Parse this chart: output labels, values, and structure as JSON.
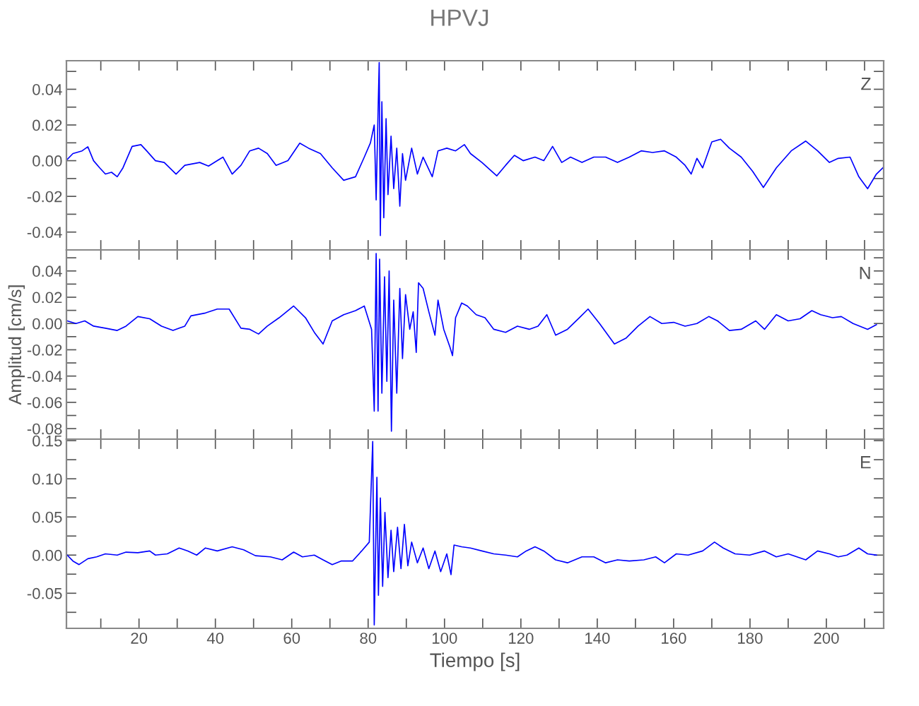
{
  "chart_data": [
    {
      "type": "line",
      "title": "HPVJ",
      "annotations": [
        "Z"
      ],
      "tick_labels": "y",
      "grid": false,
      "xlim": [
        1,
        215
      ],
      "ylim": [
        -0.05,
        0.056
      ],
      "xticks": [
        {
          "value": 10,
          "label": null
        },
        {
          "value": 20,
          "label": null
        },
        {
          "value": 30,
          "label": null
        },
        {
          "value": 40,
          "label": null
        },
        {
          "value": 50,
          "label": null
        },
        {
          "value": 60,
          "label": null
        },
        {
          "value": 70,
          "label": null
        },
        {
          "value": 80,
          "label": null
        },
        {
          "value": 90,
          "label": null
        },
        {
          "value": 100,
          "label": null
        },
        {
          "value": 110,
          "label": null
        },
        {
          "value": 120,
          "label": null
        },
        {
          "value": 130,
          "label": null
        },
        {
          "value": 140,
          "label": null
        },
        {
          "value": 150,
          "label": null
        },
        {
          "value": 160,
          "label": null
        },
        {
          "value": 170,
          "label": null
        },
        {
          "value": 180,
          "label": null
        },
        {
          "value": 190,
          "label": null
        },
        {
          "value": 200,
          "label": null
        },
        {
          "value": 210,
          "label": null
        }
      ],
      "yticks": [
        {
          "value": -0.05,
          "label": null
        },
        {
          "value": -0.04,
          "label": "-0.04"
        },
        {
          "value": -0.03,
          "label": null
        },
        {
          "value": -0.02,
          "label": "-0.02"
        },
        {
          "value": -0.01,
          "label": null
        },
        {
          "value": 0,
          "label": "0.00"
        },
        {
          "value": 0.01,
          "label": null
        },
        {
          "value": 0.02,
          "label": "0.02"
        },
        {
          "value": 0.03,
          "label": null
        },
        {
          "value": 0.04,
          "label": "0.04"
        },
        {
          "value": 0.05,
          "label": null
        }
      ],
      "series": [
        {
          "color": "#0000ff",
          "x": [
            1.2,
            2.7,
            5.1,
            6.6,
            8.1,
            9.7,
            11.2,
            12.8,
            14.3,
            15.8,
            18.2,
            20.5,
            22.0,
            24.3,
            26.6,
            29.7,
            32.0,
            35.9,
            38.2,
            40.5,
            42.0,
            44.4,
            46.7,
            49.0,
            51.3,
            53.6,
            55.9,
            59.0,
            62.1,
            64.4,
            67.5,
            70.6,
            73.6,
            76.7,
            79.0,
            80.6,
            81.6,
            82.1,
            82.6,
            82.9,
            83.2,
            83.6,
            84.1,
            84.7,
            85.2,
            86.0,
            86.7,
            87.5,
            88.3,
            89.0,
            89.8,
            91.4,
            92.9,
            94.4,
            96.8,
            98.3,
            100.6,
            102.9,
            105.2,
            106.8,
            109.8,
            113.7,
            116.0,
            118.3,
            120.6,
            123.7,
            126.0,
            128.3,
            130.7,
            133.0,
            136.0,
            139.1,
            142.2,
            145.3,
            148.4,
            151.5,
            154.5,
            157.6,
            160.7,
            163.0,
            164.6,
            166.1,
            167.6,
            170.0,
            172.3,
            174.6,
            177.7,
            180.7,
            183.5,
            186.9,
            190.8,
            194.6,
            197.7,
            200.8,
            203.1,
            206.2,
            208.5,
            210.8,
            213.1,
            214.8
          ],
          "values": [
            0.0007,
            0.004,
            0.0055,
            0.0078,
            0.0,
            -0.004,
            -0.0075,
            -0.0065,
            -0.009,
            -0.004,
            0.008,
            0.009,
            0.0055,
            0.0,
            -0.001,
            -0.0075,
            -0.0026,
            -0.001,
            -0.003,
            0.0,
            0.002,
            -0.0075,
            -0.0026,
            0.0055,
            0.007,
            0.004,
            -0.0026,
            0.0,
            0.0098,
            0.007,
            0.004,
            -0.004,
            -0.011,
            -0.009,
            0.002,
            0.01,
            0.02,
            -0.022,
            0.027,
            0.055,
            -0.042,
            0.033,
            -0.032,
            0.0235,
            -0.019,
            0.0137,
            -0.0157,
            0.007,
            -0.0255,
            0.004,
            -0.011,
            0.007,
            -0.0075,
            0.002,
            -0.009,
            0.0055,
            0.007,
            0.0055,
            0.009,
            0.004,
            -0.001,
            -0.0085,
            -0.0026,
            0.003,
            0.0,
            0.002,
            0.0,
            0.008,
            -0.001,
            0.002,
            -0.001,
            0.002,
            0.002,
            -0.001,
            0.002,
            0.0055,
            0.0046,
            0.0055,
            0.002,
            -0.0026,
            -0.0075,
            0.0013,
            -0.004,
            0.0105,
            0.012,
            0.007,
            0.002,
            -0.006,
            -0.015,
            -0.004,
            0.0055,
            0.011,
            0.0055,
            -0.001,
            0.0013,
            0.002,
            -0.009,
            -0.0157,
            -0.0075,
            -0.004
          ]
        }
      ]
    },
    {
      "type": "line",
      "ylabel": "Amplitud [cm/s]",
      "annotations": [
        "N"
      ],
      "tick_labels": "y",
      "grid": false,
      "xlim": [
        1,
        215
      ],
      "ylim": [
        -0.088,
        0.056
      ],
      "xticks": [
        {
          "value": 10,
          "label": null
        },
        {
          "value": 20,
          "label": null
        },
        {
          "value": 30,
          "label": null
        },
        {
          "value": 40,
          "label": null
        },
        {
          "value": 50,
          "label": null
        },
        {
          "value": 60,
          "label": null
        },
        {
          "value": 70,
          "label": null
        },
        {
          "value": 80,
          "label": null
        },
        {
          "value": 90,
          "label": null
        },
        {
          "value": 100,
          "label": null
        },
        {
          "value": 110,
          "label": null
        },
        {
          "value": 120,
          "label": null
        },
        {
          "value": 130,
          "label": null
        },
        {
          "value": 140,
          "label": null
        },
        {
          "value": 150,
          "label": null
        },
        {
          "value": 160,
          "label": null
        },
        {
          "value": 170,
          "label": null
        },
        {
          "value": 180,
          "label": null
        },
        {
          "value": 190,
          "label": null
        },
        {
          "value": 200,
          "label": null
        },
        {
          "value": 210,
          "label": null
        }
      ],
      "yticks": [
        {
          "value": -0.08,
          "label": "-0.08"
        },
        {
          "value": -0.07,
          "label": null
        },
        {
          "value": -0.06,
          "label": "-0.06"
        },
        {
          "value": -0.05,
          "label": null
        },
        {
          "value": -0.04,
          "label": "-0.04"
        },
        {
          "value": -0.03,
          "label": null
        },
        {
          "value": -0.02,
          "label": "-0.02"
        },
        {
          "value": -0.01,
          "label": null
        },
        {
          "value": 0,
          "label": "0.00"
        },
        {
          "value": 0.01,
          "label": null
        },
        {
          "value": 0.02,
          "label": "0.02"
        },
        {
          "value": 0.03,
          "label": null
        },
        {
          "value": 0.04,
          "label": "0.04"
        },
        {
          "value": 0.05,
          "label": null
        }
      ],
      "series": [
        {
          "color": "#0000ff",
          "x": [
            1.2,
            3.5,
            5.8,
            8.1,
            11.2,
            14.3,
            16.6,
            19.7,
            22.8,
            25.9,
            28.9,
            32.0,
            33.6,
            37.4,
            40.5,
            43.6,
            46.7,
            49.0,
            51.3,
            53.6,
            56.7,
            60.5,
            63.6,
            65.9,
            68.2,
            70.6,
            73.6,
            76.7,
            79.0,
            80.9,
            81.6,
            82.1,
            82.6,
            83.0,
            83.6,
            84.3,
            84.9,
            85.5,
            86.1,
            86.7,
            87.5,
            88.3,
            89.0,
            89.8,
            90.9,
            91.8,
            92.6,
            93.2,
            94.4,
            95.9,
            97.5,
            98.3,
            99.8,
            101.4,
            102.1,
            102.9,
            104.5,
            106.0,
            108.3,
            110.6,
            112.9,
            116.0,
            119.1,
            122.2,
            124.5,
            126.8,
            129.1,
            132.2,
            135.3,
            137.6,
            140.6,
            144.5,
            147.6,
            150.7,
            153.8,
            156.9,
            160.0,
            163.0,
            166.1,
            169.2,
            171.5,
            174.6,
            177.7,
            181.5,
            183.8,
            186.9,
            190.0,
            193.1,
            196.2,
            198.5,
            201.6,
            203.9,
            207.0,
            210.8,
            213.1
          ],
          "values": [
            0.002,
            0.0,
            0.002,
            -0.002,
            -0.0036,
            -0.0053,
            -0.002,
            0.0053,
            0.0036,
            -0.002,
            -0.0053,
            -0.002,
            0.0058,
            0.008,
            0.011,
            0.011,
            -0.0036,
            -0.0044,
            -0.008,
            -0.002,
            0.0044,
            0.0133,
            0.0044,
            -0.0067,
            -0.0156,
            0.002,
            0.0067,
            0.0098,
            0.0133,
            -0.0044,
            -0.0667,
            0.0533,
            -0.0667,
            0.049,
            -0.053,
            0.0356,
            -0.044,
            0.04,
            -0.082,
            0.0178,
            -0.053,
            0.0267,
            -0.0267,
            0.022,
            -0.0044,
            0.0089,
            -0.022,
            0.031,
            0.0267,
            0.0089,
            -0.0089,
            0.0178,
            -0.0044,
            -0.0178,
            -0.0244,
            0.0044,
            0.0156,
            0.0133,
            0.0067,
            0.0044,
            -0.0044,
            -0.0067,
            -0.002,
            -0.0044,
            -0.002,
            0.0067,
            -0.0089,
            -0.0044,
            0.0044,
            0.011,
            0.0,
            -0.0156,
            -0.011,
            -0.002,
            0.0053,
            0.0,
            0.0009,
            -0.002,
            0.0,
            0.0053,
            0.002,
            -0.0053,
            -0.0044,
            0.002,
            -0.0044,
            0.0067,
            0.002,
            0.0036,
            0.0098,
            0.0067,
            0.0044,
            0.0053,
            0.0,
            -0.0044,
            -0.0009
          ]
        }
      ]
    },
    {
      "type": "line",
      "xlabel": "Tiempo [s]",
      "annotations": [
        "E"
      ],
      "grid": false,
      "xlim": [
        1,
        215
      ],
      "ylim": [
        -0.096,
        0.152
      ],
      "xticks": [
        {
          "value": 10,
          "label": null
        },
        20,
        {
          "value": 30,
          "label": null
        },
        40,
        {
          "value": 50,
          "label": null
        },
        60,
        {
          "value": 70,
          "label": null
        },
        80,
        {
          "value": 90,
          "label": null
        },
        100,
        {
          "value": 110,
          "label": null
        },
        120,
        {
          "value": 130,
          "label": null
        },
        140,
        {
          "value": 150,
          "label": null
        },
        160,
        {
          "value": 170,
          "label": null
        },
        180,
        {
          "value": 190,
          "label": null
        },
        200,
        {
          "value": 210,
          "label": null
        }
      ],
      "yticks": [
        {
          "value": -0.075,
          "label": null
        },
        {
          "value": -0.05,
          "label": "-0.05"
        },
        {
          "value": -0.025,
          "label": null
        },
        {
          "value": 0,
          "label": "0.00"
        },
        {
          "value": 0.025,
          "label": null
        },
        {
          "value": 0.05,
          "label": "0.05"
        },
        {
          "value": 0.075,
          "label": null
        },
        {
          "value": 0.1,
          "label": "0.10"
        },
        {
          "value": 0.125,
          "label": null
        },
        {
          "value": 0.15,
          "label": "0.15"
        }
      ],
      "series": [
        {
          "color": "#0000ff",
          "x": [
            1.2,
            2.7,
            4.3,
            6.6,
            8.9,
            11.2,
            14.3,
            16.6,
            19.7,
            22.8,
            24.3,
            27.4,
            30.5,
            32.8,
            35.1,
            37.4,
            40.5,
            44.4,
            47.4,
            50.5,
            54.4,
            57.5,
            60.5,
            62.8,
            65.9,
            68.2,
            70.6,
            72.9,
            75.9,
            78.3,
            80.3,
            81.2,
            81.6,
            82.3,
            82.7,
            83.2,
            83.8,
            84.4,
            85.2,
            86.0,
            86.7,
            87.7,
            88.6,
            89.5,
            90.4,
            91.4,
            92.9,
            94.4,
            95.9,
            97.5,
            99.0,
            100.6,
            101.7,
            102.5,
            104.5,
            106.8,
            109.8,
            112.9,
            116.0,
            119.1,
            121.4,
            123.7,
            126.0,
            129.1,
            132.2,
            136.0,
            139.1,
            142.2,
            145.3,
            148.4,
            152.2,
            155.3,
            157.6,
            160.7,
            163.8,
            167.6,
            170.7,
            173.0,
            176.1,
            179.9,
            183.8,
            186.9,
            190.0,
            192.3,
            194.6,
            197.7,
            200.8,
            203.1,
            205.4,
            208.5,
            210.8,
            213.1
          ],
          "values": [
            0.0,
            -0.0078,
            -0.0124,
            -0.0047,
            -0.0023,
            0.0016,
            0.0,
            0.0039,
            0.0031,
            0.0054,
            0.0,
            0.0016,
            0.0093,
            0.0054,
            0.0,
            0.0093,
            0.0054,
            0.0109,
            0.007,
            -0.0008,
            -0.0023,
            -0.0062,
            0.0039,
            -0.0023,
            0.0,
            -0.0062,
            -0.0124,
            -0.0078,
            -0.0078,
            0.0054,
            0.017,
            0.149,
            -0.0915,
            0.102,
            -0.0527,
            0.075,
            -0.041,
            0.056,
            -0.0295,
            0.0326,
            -0.0217,
            0.0364,
            -0.0178,
            0.0403,
            -0.014,
            0.017,
            -0.0101,
            0.0093,
            -0.0178,
            0.0054,
            -0.0217,
            0.0016,
            -0.0256,
            0.0132,
            0.0109,
            0.0093,
            0.0054,
            0.0016,
            0.0,
            -0.0023,
            0.0054,
            0.0109,
            0.0054,
            -0.0062,
            -0.0101,
            -0.0023,
            -0.0023,
            -0.0101,
            -0.0062,
            -0.0078,
            -0.0062,
            -0.0023,
            -0.0101,
            0.0016,
            0.0,
            0.0054,
            0.017,
            0.0093,
            0.0016,
            0.0,
            0.0054,
            -0.0023,
            0.0016,
            -0.0023,
            -0.0062,
            0.0054,
            0.0016,
            -0.0023,
            0.0,
            0.0093,
            0.0016,
            0.0
          ]
        }
      ]
    }
  ]
}
